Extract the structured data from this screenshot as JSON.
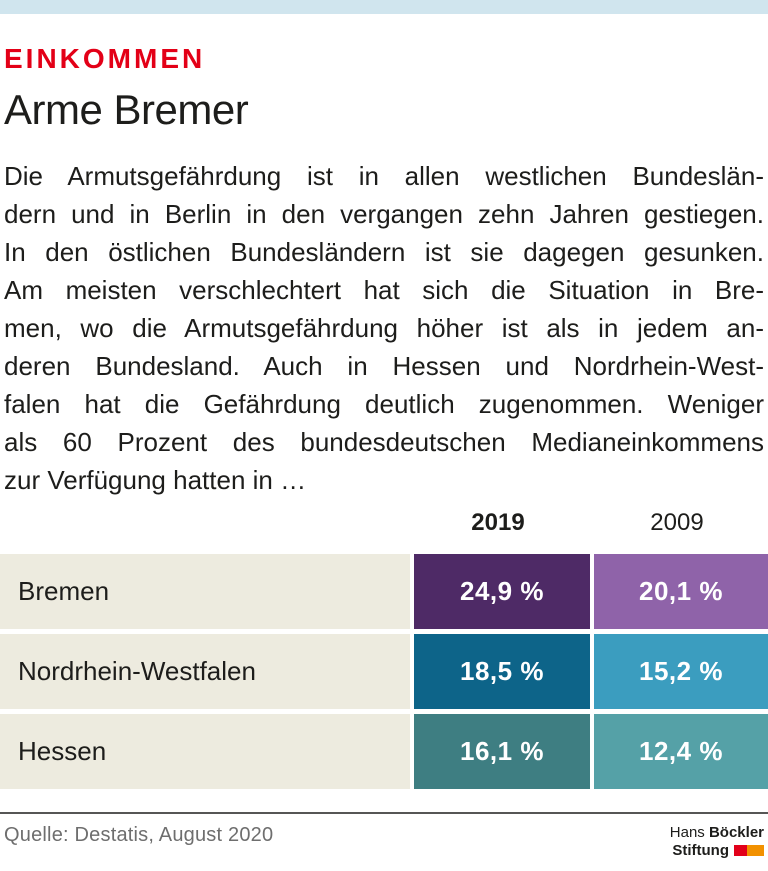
{
  "page": {
    "kicker": "EINKOMMEN",
    "title": "Arme Bremer"
  },
  "article": {
    "lines": [
      "Die Armutsgefährdung ist in allen westlichen Bundeslän-",
      "dern und in Berlin in den vergangen zehn Jahren gestiegen.",
      "In den östlichen Bundesländern ist sie dagegen gesunken.",
      "Am meisten verschlechtert hat sich die Situation in Bre-",
      "men, wo die Armutsgefährdung höher ist als in jedem an-",
      "deren Bundesland. Auch in Hessen und Nordrhein-West-",
      "falen hat die Gefährdung deutlich zugenommen. Weniger",
      "als 60 Prozent des bundesdeutschen Medianeinkommens",
      "zur Verfügung hatten in …"
    ]
  },
  "table": {
    "columns": [
      "2019",
      "2009"
    ],
    "label_bg": "#edebdf",
    "rows": [
      {
        "label": "Bremen",
        "values": [
          "24,9 %",
          "20,1 %"
        ],
        "colors": [
          "#4e2a66",
          "#8f63a9"
        ]
      },
      {
        "label": "Nordrhein-Westfalen",
        "values": [
          "18,5 %",
          "15,2 %"
        ],
        "colors": [
          "#0d6489",
          "#3b9dbf"
        ]
      },
      {
        "label": "Hessen",
        "values": [
          "16,1 %",
          "12,4 %"
        ],
        "colors": [
          "#3e7e82",
          "#55a1a7"
        ]
      }
    ]
  },
  "chart_data": {
    "type": "table",
    "title": "Arme Bremer",
    "subtitle": "EINKOMMEN",
    "categories": [
      "Bremen",
      "Nordrhein-Westfalen",
      "Hessen"
    ],
    "series": [
      {
        "name": "2019",
        "values": [
          24.9,
          18.5,
          16.1
        ]
      },
      {
        "name": "2009",
        "values": [
          20.1,
          15.2,
          12.4
        ]
      }
    ],
    "unit": "%",
    "source": "Quelle: Destatis, August 2020"
  },
  "footer": {
    "source": "Quelle: Destatis, August 2020",
    "logo": {
      "line1_regular": "Hans",
      "line1_bold": "Böckler",
      "line2_bold": "Stiftung",
      "mark_colors": [
        "#e2001a",
        "#f29100"
      ]
    }
  },
  "colors": {
    "topbar": "#d0e5ee",
    "accent_red": "#e30017",
    "text": "#1d1d1b",
    "muted": "#6e6e6e",
    "rule": "#565655"
  }
}
